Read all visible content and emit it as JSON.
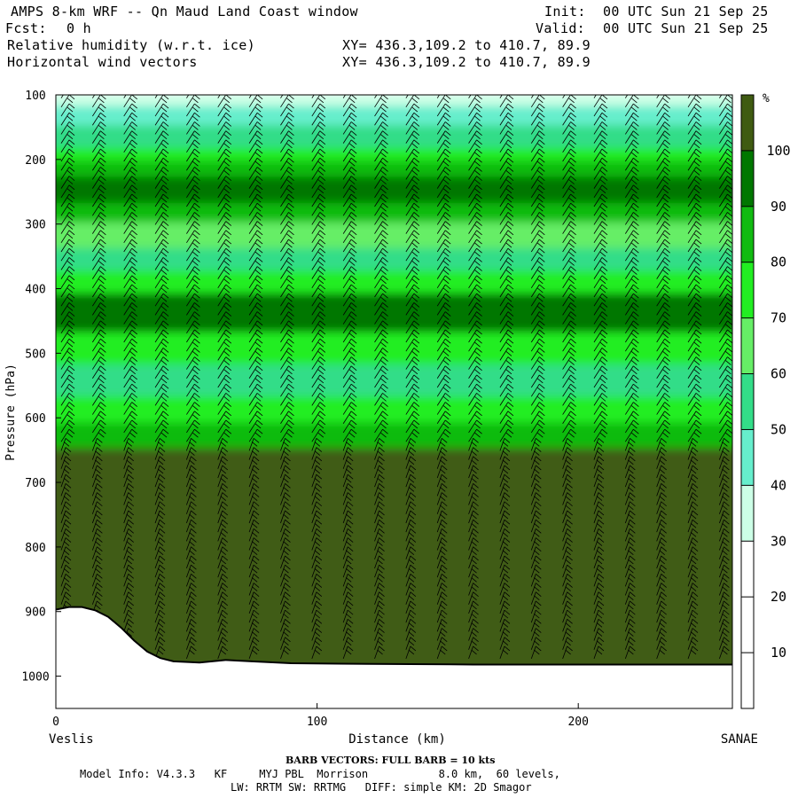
{
  "header": {
    "model_title": "AMPS 8-km WRF -- Qn Maud Land Coast window",
    "fcst_label": "Fcst:",
    "fcst_value": "0 h",
    "init_label": "Init:",
    "init_value": "00 UTC Sun 21 Sep 25",
    "valid_label": "Valid:",
    "valid_value": "00 UTC Sun 21 Sep 25",
    "field_1": "Relative humidity (w.r.t. ice)",
    "field_2": "Horizontal wind vectors",
    "xy_1": "XY= 436.3,109.2 to 410.7, 89.9",
    "xy_2": "XY= 436.3,109.2 to 410.7, 89.9"
  },
  "chart_data": {
    "type": "heatmap",
    "title": "Relative humidity (w.r.t. ice)",
    "overlay": "Horizontal wind vectors",
    "xlabel": "Distance (km)",
    "ylabel": "Pressure (hPa)",
    "xlim": [
      0,
      259
    ],
    "ylim": [
      1050,
      100
    ],
    "x_ticks": [
      0,
      100,
      200
    ],
    "y_ticks": [
      100,
      200,
      300,
      400,
      500,
      600,
      700,
      800,
      900,
      1000
    ],
    "left_endpoint": "Veslis",
    "right_endpoint": "SANAE",
    "colorbar": {
      "unit": "%",
      "levels": [
        10,
        20,
        30,
        40,
        50,
        60,
        70,
        80,
        90,
        100
      ],
      "colors": [
        "#ffffff",
        "#ffffff",
        "#ffffff",
        "#ccffe6",
        "#66eecc",
        "#33dd88",
        "#66ee66",
        "#22ee22",
        "#11bb11",
        "#007700",
        "#3f5b12"
      ]
    },
    "bands": [
      {
        "p_top": 100,
        "p_bottom": 120,
        "rh": 35
      },
      {
        "p_top": 120,
        "p_bottom": 150,
        "rh": 45
      },
      {
        "p_top": 150,
        "p_bottom": 185,
        "rh": 55
      },
      {
        "p_top": 185,
        "p_bottom": 205,
        "rh": 75
      },
      {
        "p_top": 205,
        "p_bottom": 230,
        "rh": 85
      },
      {
        "p_top": 230,
        "p_bottom": 270,
        "rh": 95
      },
      {
        "p_top": 270,
        "p_bottom": 300,
        "rh": 85
      },
      {
        "p_top": 300,
        "p_bottom": 340,
        "rh": 65
      },
      {
        "p_top": 340,
        "p_bottom": 375,
        "rh": 55
      },
      {
        "p_top": 375,
        "p_bottom": 410,
        "rh": 75
      },
      {
        "p_top": 410,
        "p_bottom": 470,
        "rh": 95
      },
      {
        "p_top": 470,
        "p_bottom": 520,
        "rh": 75
      },
      {
        "p_top": 520,
        "p_bottom": 570,
        "rh": 55
      },
      {
        "p_top": 570,
        "p_bottom": 610,
        "rh": 75
      },
      {
        "p_top": 610,
        "p_bottom": 650,
        "rh": 85
      },
      {
        "p_top": 650,
        "p_bottom": 1050,
        "rh": 105
      }
    ],
    "terrain_profile": [
      {
        "x": 0,
        "p": 897
      },
      {
        "x": 5,
        "p": 893
      },
      {
        "x": 10,
        "p": 893
      },
      {
        "x": 15,
        "p": 898
      },
      {
        "x": 20,
        "p": 908
      },
      {
        "x": 25,
        "p": 925
      },
      {
        "x": 30,
        "p": 945
      },
      {
        "x": 35,
        "p": 962
      },
      {
        "x": 40,
        "p": 972
      },
      {
        "x": 45,
        "p": 977
      },
      {
        "x": 55,
        "p": 979
      },
      {
        "x": 65,
        "p": 975
      },
      {
        "x": 75,
        "p": 977
      },
      {
        "x": 90,
        "p": 980
      },
      {
        "x": 120,
        "p": 981
      },
      {
        "x": 160,
        "p": 982
      },
      {
        "x": 200,
        "p": 982
      },
      {
        "x": 259,
        "p": 982
      }
    ],
    "barb_columns_km": [
      0,
      12,
      24,
      36,
      48,
      60,
      72,
      84,
      96,
      108,
      120,
      132,
      144,
      156,
      168,
      180,
      192,
      204,
      216,
      228,
      240,
      252
    ]
  },
  "footer": {
    "barb_note": "BARB VECTORS:  FULL BARB = 10 kts",
    "model_info_1": "Model Info: V4.3.3   KF     MYJ PBL  Morrison           8.0 km,  60 levels,",
    "model_info_2": "LW: RRTM SW: RRTMG   DIFF: simple KM: 2D Smagor"
  }
}
